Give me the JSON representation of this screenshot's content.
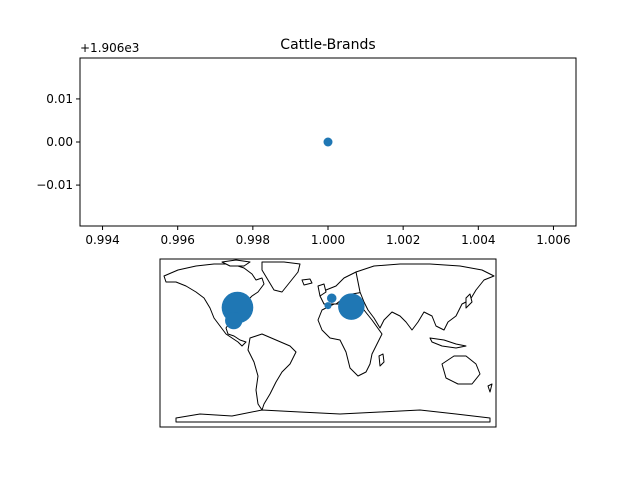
{
  "chart_data": [
    {
      "type": "scatter",
      "title": "Cattle-Brands",
      "xlabel": "",
      "ylabel": "",
      "xlim": [
        0.9934,
        1.0066
      ],
      "ylim": [
        -0.0195,
        0.0195
      ],
      "y_offset_label": "+1.906e3",
      "x_ticks": [
        "0.994",
        "0.996",
        "0.998",
        "1.000",
        "1.002",
        "1.004",
        "1.006"
      ],
      "x_tick_values": [
        0.994,
        0.996,
        0.998,
        1.0,
        1.002,
        1.004,
        1.006
      ],
      "y_ticks": [
        "0.01",
        "0.00",
        "−0.01"
      ],
      "y_tick_values": [
        0.01,
        0.0,
        -0.01
      ],
      "x": [
        1.0
      ],
      "y": [
        0.0
      ],
      "color": "#1f77b4",
      "grid": false
    },
    {
      "type": "scatter",
      "subtype": "map",
      "xlabel": "",
      "ylabel": "",
      "xlim": [
        -180,
        180
      ],
      "ylim": [
        -90,
        90
      ],
      "color": "#1f77b4",
      "grid": false,
      "points": [
        {
          "lon": -97,
          "lat": 38,
          "size": 1000
        },
        {
          "lon": -101,
          "lat": 24,
          "size": 300
        },
        {
          "lon": 25,
          "lat": 39,
          "size": 700
        },
        {
          "lon": 4,
          "lat": 48,
          "size": 90
        },
        {
          "lon": 0,
          "lat": 40,
          "size": 50
        }
      ]
    }
  ]
}
